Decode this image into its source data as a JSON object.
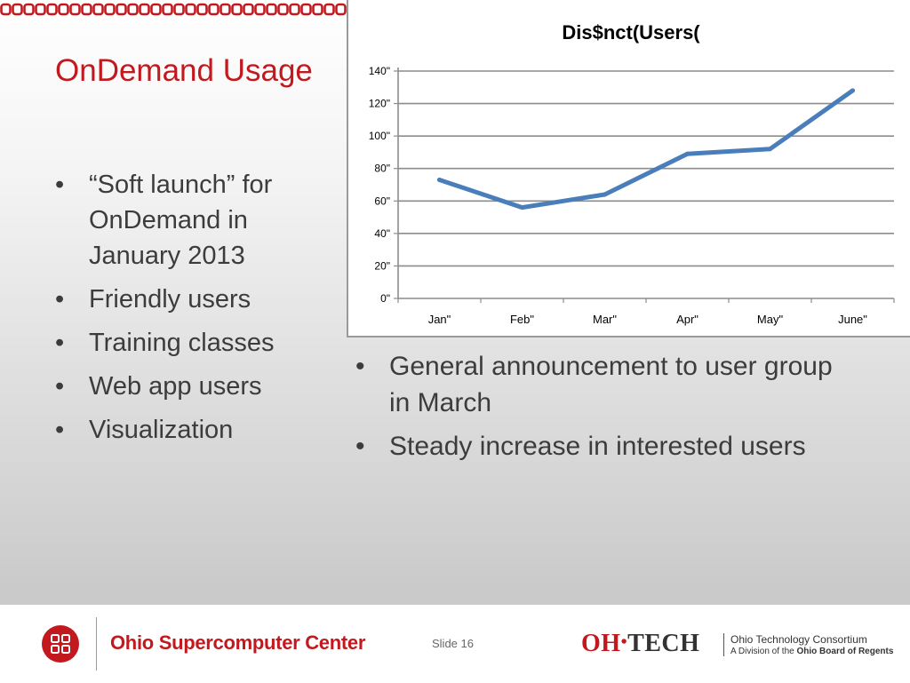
{
  "slide": {
    "title": "OnDemand Usage",
    "left_bullets": [
      "“Soft launch” for OnDemand in January 2013",
      "Friendly users",
      "Training classes",
      "Web app users",
      "Visualization"
    ],
    "right_bullets": [
      "General announcement to user group in March",
      "Steady increase in interested users"
    ]
  },
  "footer": {
    "org_name": "Ohio Supercomputer Center",
    "slide_label": "Slide 16",
    "ohtech_oh": "OH",
    "ohtech_dot": "•",
    "ohtech_tech": "TECH",
    "consortium_name": "Ohio Technology Consortium",
    "consortium_sub_prefix": "A Division of the",
    "consortium_sub_bold": "Ohio Board of Regents"
  },
  "colors": {
    "accent_red": "#c2191f",
    "line_blue": "#4a7ebb",
    "text_gray": "#3c3c3c"
  },
  "chart_data": {
    "type": "line",
    "title": "Dis$nct(Users(",
    "xlabel": "",
    "ylabel": "",
    "categories": [
      "Jan\"",
      "Feb\"",
      "Mar\"",
      "Apr\"",
      "May\"",
      "June\""
    ],
    "y_tick_labels": [
      "0\"",
      "20\"",
      "40\"",
      "60\"",
      "80\"",
      "100\"",
      "120\"",
      "140\""
    ],
    "ylim": [
      0,
      140
    ],
    "series": [
      {
        "values": [
          73,
          56,
          64,
          89,
          92,
          128
        ]
      }
    ],
    "grid": "horizontal",
    "legend": "none"
  }
}
